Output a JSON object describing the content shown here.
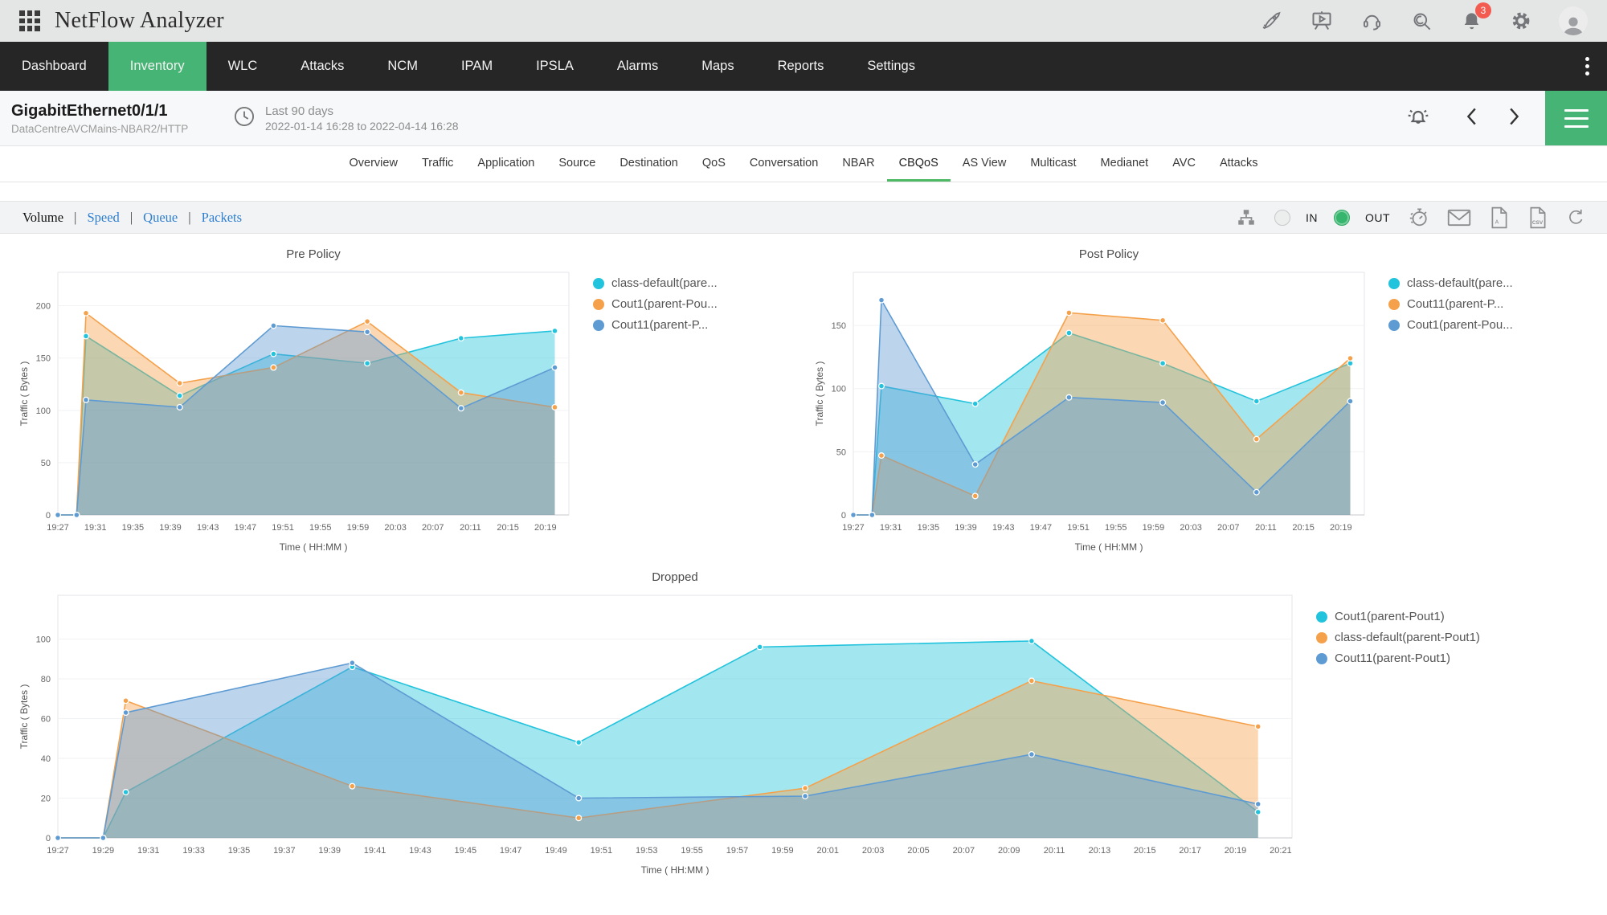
{
  "topbar": {
    "title": "NetFlow Analyzer",
    "notification_count": "3",
    "icons": [
      "rocket-icon",
      "presentation-play-icon",
      "headset-icon",
      "search-icon",
      "notification-bell-icon",
      "settings-gear-icon",
      "user-avatar"
    ]
  },
  "nav": {
    "items": [
      {
        "label": "Dashboard",
        "active": false
      },
      {
        "label": "Inventory",
        "active": true
      },
      {
        "label": "WLC",
        "active": false
      },
      {
        "label": "Attacks",
        "active": false
      },
      {
        "label": "NCM",
        "active": false
      },
      {
        "label": "IPAM",
        "active": false
      },
      {
        "label": "IPSLA",
        "active": false
      },
      {
        "label": "Alarms",
        "active": false
      },
      {
        "label": "Maps",
        "active": false
      },
      {
        "label": "Reports",
        "active": false
      },
      {
        "label": "Settings",
        "active": false
      }
    ]
  },
  "header": {
    "interface_name": "GigabitEthernet0/1/1",
    "device_path": "DataCentreAVCMains-NBAR2/HTTP",
    "period_label": "Last 90 days",
    "period_range": "2022-01-14 16:28 to 2022-04-14 16:28"
  },
  "subtabs": {
    "active": "CBQoS",
    "items": [
      "Overview",
      "Traffic",
      "Application",
      "Source",
      "Destination",
      "QoS",
      "Conversation",
      "NBAR",
      "CBQoS",
      "AS View",
      "Multicast",
      "Medianet",
      "AVC",
      "Attacks"
    ]
  },
  "toolbar": {
    "views": [
      {
        "label": "Volume",
        "active": true
      },
      {
        "label": "Speed",
        "active": false
      },
      {
        "label": "Queue",
        "active": false
      },
      {
        "label": "Packets",
        "active": false
      }
    ],
    "direction": {
      "in_label": "IN",
      "out_label": "OUT",
      "selected": "OUT"
    },
    "icons": [
      "hierarchy-icon",
      "timer-icon",
      "email-icon",
      "pdf-export-icon",
      "csv-export-icon",
      "refresh-icon"
    ]
  },
  "colors": {
    "accent_green": "#46b474",
    "tab_underline_green": "#4db964",
    "badge_red": "#f35a50",
    "series_cyan": "#22c3dc",
    "series_orange": "#f5a14b",
    "series_blue": "#5f9bd3"
  },
  "chart_data": [
    {
      "type": "area",
      "title": "Pre Policy",
      "xlabel": "Time ( HH:MM )",
      "ylabel": "Traffic ( Bytes )",
      "ylim": [
        0,
        232
      ],
      "yticks": [
        0,
        50,
        100,
        150,
        200
      ],
      "xlim": [
        0,
        54.5
      ],
      "xtick_minutes": [
        0,
        4,
        8,
        12,
        16,
        20,
        24,
        28,
        32,
        36,
        40,
        44,
        48,
        52
      ],
      "xtick_labels": [
        "19:27",
        "19:31",
        "19:35",
        "19:39",
        "19:43",
        "19:47",
        "19:51",
        "19:55",
        "19:59",
        "20:03",
        "20:07",
        "20:11",
        "20:15",
        "20:19"
      ],
      "legend_position": "right",
      "grid": true,
      "series": [
        {
          "name": "class-default(pare...",
          "color": "#22c3dc",
          "x_minutes": [
            0,
            2,
            3,
            13,
            23,
            33,
            43,
            53
          ],
          "values": [
            0,
            0,
            171,
            114,
            154,
            145,
            169,
            176
          ]
        },
        {
          "name": "Cout1(parent-Pou...",
          "color": "#f5a14b",
          "x_minutes": [
            0,
            2,
            3,
            13,
            23,
            33,
            43,
            53
          ],
          "values": [
            0,
            0,
            193,
            126,
            141,
            185,
            117,
            103
          ]
        },
        {
          "name": "Cout11(parent-P...",
          "color": "#5f9bd3",
          "x_minutes": [
            0,
            2,
            3,
            13,
            23,
            33,
            43,
            53
          ],
          "values": [
            0,
            0,
            110,
            103,
            181,
            175,
            102,
            141
          ]
        }
      ]
    },
    {
      "type": "area",
      "title": "Post Policy",
      "xlabel": "Time ( HH:MM )",
      "ylabel": "Traffic ( Bytes )",
      "ylim": [
        0,
        192
      ],
      "yticks": [
        0,
        50,
        100,
        150
      ],
      "xlim": [
        0,
        54.5
      ],
      "xtick_minutes": [
        0,
        4,
        8,
        12,
        16,
        20,
        24,
        28,
        32,
        36,
        40,
        44,
        48,
        52
      ],
      "xtick_labels": [
        "19:27",
        "19:31",
        "19:35",
        "19:39",
        "19:43",
        "19:47",
        "19:51",
        "19:55",
        "19:59",
        "20:03",
        "20:07",
        "20:11",
        "20:15",
        "20:19"
      ],
      "legend_position": "right",
      "grid": true,
      "series": [
        {
          "name": "class-default(pare...",
          "color": "#22c3dc",
          "x_minutes": [
            0,
            2,
            3,
            13,
            23,
            33,
            43,
            53
          ],
          "values": [
            0,
            0,
            102,
            88,
            144,
            120,
            90,
            120
          ]
        },
        {
          "name": "Cout11(parent-P...",
          "color": "#f5a14b",
          "x_minutes": [
            0,
            2,
            3,
            13,
            23,
            33,
            43,
            53
          ],
          "values": [
            0,
            0,
            47,
            15,
            160,
            154,
            60,
            124
          ]
        },
        {
          "name": "Cout1(parent-Pou...",
          "color": "#5f9bd3",
          "x_minutes": [
            0,
            2,
            3,
            13,
            23,
            33,
            43,
            53
          ],
          "values": [
            0,
            0,
            170,
            40,
            93,
            89,
            18,
            90
          ]
        }
      ]
    },
    {
      "type": "area",
      "title": "Dropped",
      "xlabel": "Time ( HH:MM )",
      "ylabel": "Traffic ( Bytes )",
      "ylim": [
        0,
        122
      ],
      "yticks": [
        0,
        20,
        40,
        60,
        80,
        100
      ],
      "xlim": [
        0,
        54.5
      ],
      "xtick_minutes": [
        0,
        2,
        4,
        6,
        8,
        10,
        12,
        14,
        16,
        18,
        20,
        22,
        24,
        26,
        28,
        30,
        32,
        34,
        36,
        38,
        40,
        42,
        44,
        46,
        48,
        50,
        52,
        54
      ],
      "xtick_labels": [
        "19:27",
        "19:29",
        "19:31",
        "19:33",
        "19:35",
        "19:37",
        "19:39",
        "19:41",
        "19:43",
        "19:45",
        "19:47",
        "19:49",
        "19:51",
        "19:53",
        "19:55",
        "19:57",
        "19:59",
        "20:01",
        "20:03",
        "20:05",
        "20:07",
        "20:09",
        "20:11",
        "20:13",
        "20:15",
        "20:17",
        "20:19",
        "20:21"
      ],
      "legend_position": "right",
      "grid": true,
      "series": [
        {
          "name": "Cout1(parent-Pout1)",
          "color": "#22c3dc",
          "x_minutes": [
            0,
            2,
            3,
            13,
            23,
            31,
            43,
            53
          ],
          "values": [
            0,
            0,
            23,
            86,
            48,
            96,
            99,
            13
          ]
        },
        {
          "name": "class-default(parent-Pout1)",
          "color": "#f5a14b",
          "x_minutes": [
            0,
            2,
            3,
            13,
            23,
            33,
            43,
            53
          ],
          "values": [
            0,
            0,
            69,
            26,
            10,
            25,
            79,
            56
          ]
        },
        {
          "name": "Cout11(parent-Pout1)",
          "color": "#5f9bd3",
          "x_minutes": [
            0,
            2,
            3,
            13,
            23,
            33,
            43,
            53
          ],
          "values": [
            0,
            0,
            63,
            88,
            20,
            21,
            42,
            17
          ]
        }
      ]
    }
  ]
}
